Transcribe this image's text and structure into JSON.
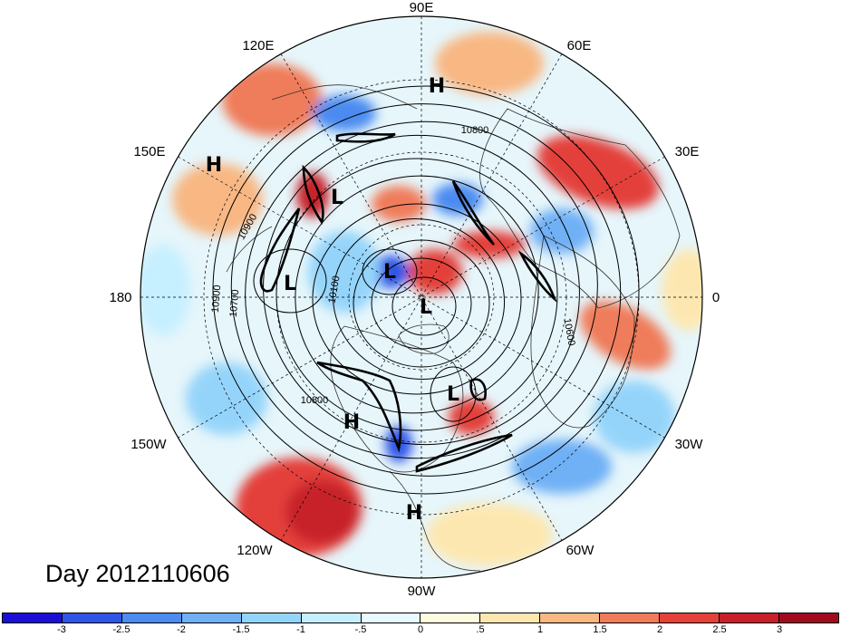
{
  "map": {
    "longitude_labels": [
      "90E",
      "60E",
      "30E",
      "0",
      "30W",
      "60W",
      "90W",
      "120W",
      "150W",
      "180",
      "150E",
      "120E"
    ],
    "pressure_systems": [
      {
        "type": "H",
        "label": "H"
      },
      {
        "type": "H",
        "label": "H"
      },
      {
        "type": "L",
        "label": "L"
      },
      {
        "type": "L",
        "label": "L"
      },
      {
        "type": "L",
        "label": "L"
      },
      {
        "type": "L",
        "label": "L"
      },
      {
        "type": "L",
        "label": "L"
      },
      {
        "type": "H",
        "label": "H"
      },
      {
        "type": "H",
        "label": "H"
      }
    ],
    "contour_labels": [
      "10800",
      "10900",
      "10900",
      "10700",
      "10100",
      "10800",
      "10600"
    ]
  },
  "title": {
    "day_label": "Day 2012110606"
  },
  "colorbar": {
    "ticks": [
      "-3",
      "-2.5",
      "-2",
      "-1.5",
      "-1",
      "-.5",
      "0",
      ".5",
      "1",
      "1.5",
      "2",
      "2.5",
      "3"
    ],
    "colors": [
      "#1b0fd6",
      "#2f55e6",
      "#4c8bf0",
      "#6fb0f5",
      "#95d4fa",
      "#c6efff",
      "#e8faff",
      "#fffbe0",
      "#fde7b0",
      "#f8b783",
      "#ef7b5a",
      "#e3413a",
      "#c7202a",
      "#a00c1e"
    ]
  }
}
